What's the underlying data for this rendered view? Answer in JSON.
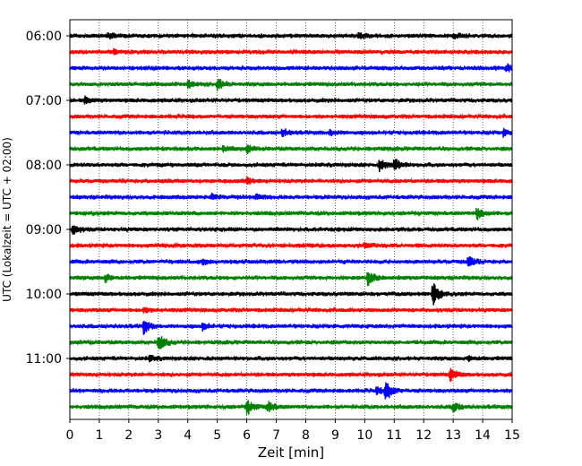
{
  "chart_data": {
    "type": "line",
    "title": "",
    "xlabel": "Zeit  [min]",
    "ylabel": "UTC (Lokalzeit = UTC + 02:00)",
    "xlim": [
      0,
      15
    ],
    "x_ticks": [
      "0",
      "1",
      "2",
      "3",
      "4",
      "5",
      "6",
      "7",
      "8",
      "9",
      "10",
      "11",
      "12",
      "13",
      "14",
      "15"
    ],
    "y_ticks": [
      "06:00",
      "07:00",
      "08:00",
      "09:00",
      "10:00",
      "11:00"
    ],
    "grid": "vertical dotted",
    "trace_interval_minutes": 15,
    "trace_colors": [
      "#000000",
      "#ff0000",
      "#0000ff",
      "#008000"
    ],
    "traces": [
      {
        "start": "06:00",
        "color": "#000000",
        "events": [
          {
            "t": 1.3,
            "amp": 0.25
          },
          {
            "t": 9.8,
            "amp": 0.25
          },
          {
            "t": 13.0,
            "amp": 0.2
          }
        ]
      },
      {
        "start": "06:15",
        "color": "#ff0000",
        "events": [
          {
            "t": 1.5,
            "amp": 0.2
          }
        ]
      },
      {
        "start": "06:30",
        "color": "#0000ff",
        "events": [
          {
            "t": 14.8,
            "amp": 0.3
          }
        ]
      },
      {
        "start": "06:45",
        "color": "#008000",
        "events": [
          {
            "t": 4.0,
            "amp": 0.3
          },
          {
            "t": 5.0,
            "amp": 0.45
          }
        ]
      },
      {
        "start": "07:00",
        "color": "#000000",
        "events": [
          {
            "t": 0.5,
            "amp": 0.25
          }
        ]
      },
      {
        "start": "07:15",
        "color": "#ff0000",
        "events": []
      },
      {
        "start": "07:30",
        "color": "#0000ff",
        "events": [
          {
            "t": 7.2,
            "amp": 0.3
          },
          {
            "t": 8.8,
            "amp": 0.2
          },
          {
            "t": 14.7,
            "amp": 0.25
          }
        ]
      },
      {
        "start": "07:45",
        "color": "#008000",
        "events": [
          {
            "t": 5.2,
            "amp": 0.25
          },
          {
            "t": 6.0,
            "amp": 0.3
          }
        ]
      },
      {
        "start": "08:00",
        "color": "#000000",
        "events": [
          {
            "t": 10.5,
            "amp": 0.45
          },
          {
            "t": 11.0,
            "amp": 0.55
          }
        ]
      },
      {
        "start": "08:15",
        "color": "#ff0000",
        "events": [
          {
            "t": 6.0,
            "amp": 0.25
          }
        ]
      },
      {
        "start": "08:30",
        "color": "#0000ff",
        "events": [
          {
            "t": 4.8,
            "amp": 0.2
          },
          {
            "t": 6.3,
            "amp": 0.25
          }
        ]
      },
      {
        "start": "08:45",
        "color": "#008000",
        "events": [
          {
            "t": 13.8,
            "amp": 0.45
          }
        ]
      },
      {
        "start": "09:00",
        "color": "#000000",
        "events": [
          {
            "t": 0.1,
            "amp": 0.4
          }
        ]
      },
      {
        "start": "09:15",
        "color": "#ff0000",
        "events": [
          {
            "t": 10.0,
            "amp": 0.2
          }
        ]
      },
      {
        "start": "09:30",
        "color": "#0000ff",
        "events": [
          {
            "t": 13.5,
            "amp": 0.45
          },
          {
            "t": 4.5,
            "amp": 0.2
          }
        ]
      },
      {
        "start": "09:45",
        "color": "#008000",
        "events": [
          {
            "t": 1.2,
            "amp": 0.3
          },
          {
            "t": 10.1,
            "amp": 0.6
          }
        ]
      },
      {
        "start": "10:00",
        "color": "#000000",
        "events": [
          {
            "t": 12.3,
            "amp": 1.0
          }
        ]
      },
      {
        "start": "10:15",
        "color": "#ff0000",
        "events": [
          {
            "t": 2.5,
            "amp": 0.2
          }
        ]
      },
      {
        "start": "10:30",
        "color": "#0000ff",
        "events": [
          {
            "t": 2.5,
            "amp": 0.55
          },
          {
            "t": 4.5,
            "amp": 0.25
          }
        ]
      },
      {
        "start": "10:45",
        "color": "#008000",
        "events": [
          {
            "t": 3.0,
            "amp": 0.7
          }
        ]
      },
      {
        "start": "11:00",
        "color": "#000000",
        "events": [
          {
            "t": 2.7,
            "amp": 0.2
          },
          {
            "t": 13.5,
            "amp": 0.2
          }
        ]
      },
      {
        "start": "11:15",
        "color": "#ff0000",
        "events": [
          {
            "t": 12.9,
            "amp": 0.45
          }
        ]
      },
      {
        "start": "11:30",
        "color": "#0000ff",
        "events": [
          {
            "t": 10.7,
            "amp": 0.9
          },
          {
            "t": 10.4,
            "amp": 0.25
          }
        ]
      },
      {
        "start": "11:45",
        "color": "#008000",
        "events": [
          {
            "t": 6.0,
            "amp": 0.6
          },
          {
            "t": 6.7,
            "amp": 0.45
          },
          {
            "t": 13.0,
            "amp": 0.4
          }
        ]
      }
    ]
  }
}
